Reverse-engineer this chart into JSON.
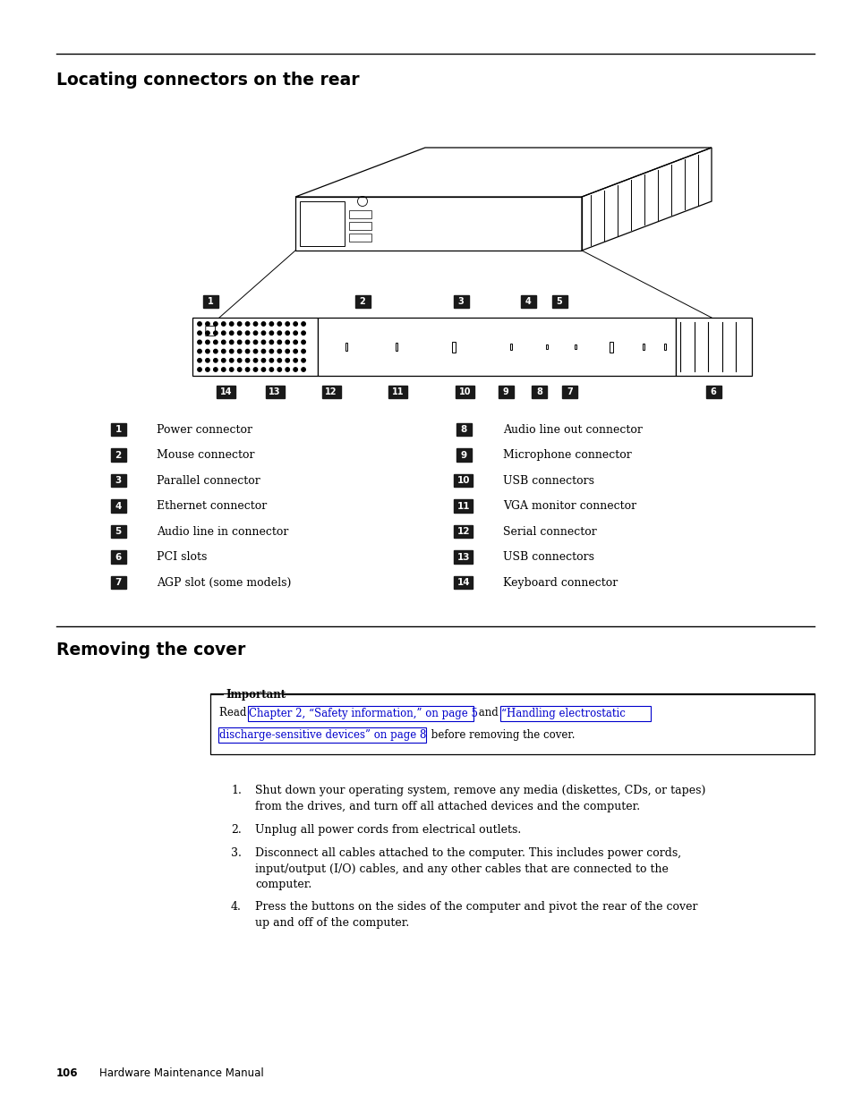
{
  "title1": "Locating connectors on the rear",
  "title2": "Removing the cover",
  "left_labels": [
    [
      "1",
      "Power connector"
    ],
    [
      "2",
      "Mouse connector"
    ],
    [
      "3",
      "Parallel connector"
    ],
    [
      "4",
      "Ethernet connector"
    ],
    [
      "5",
      "Audio line in connector"
    ],
    [
      "6",
      "PCI slots"
    ],
    [
      "7",
      "AGP slot (some models)"
    ]
  ],
  "right_labels": [
    [
      "8",
      "Audio line out connector"
    ],
    [
      "9",
      "Microphone connector"
    ],
    [
      "10",
      "USB connectors"
    ],
    [
      "11",
      "VGA monitor connector"
    ],
    [
      "12",
      "Serial connector"
    ],
    [
      "13",
      "USB connectors"
    ],
    [
      "14",
      "Keyboard connector"
    ]
  ],
  "important_title": "Important",
  "important_link1": "Chapter 2, “Safety information,” on page 5",
  "important_link2": "“Handling electrostatic\ndischarge-sensitive devices” on page 8",
  "important_text_after": " before removing the cover.",
  "steps": [
    "Shut down your operating system, remove any media (diskettes, CDs, or tapes)\nfrom the drives, and turn off all attached devices and the computer.",
    "Unplug all power cords from electrical outlets.",
    "Disconnect all cables attached to the computer. This includes power cords,\ninput/output (I/O) cables, and any other cables that are connected to the\ncomputer.",
    "Press the buttons on the sides of the computer and pivot the rear of the cover\nup and off of the computer."
  ],
  "footer_page": "106",
  "footer_text": "Hardware Maintenance Manual",
  "bg_color": "#ffffff",
  "label_bg": "#1a1a1a",
  "label_fg": "#ffffff",
  "link_color": "#0000cc",
  "text_color": "#000000"
}
